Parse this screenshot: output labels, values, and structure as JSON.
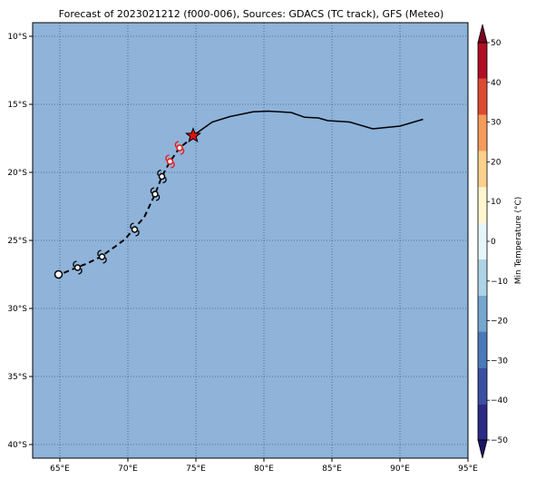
{
  "title": "Forecast of 2023021212 (f000-006), Sources: GDACS (TC track), GFS (Meteo)",
  "map": {
    "lon_range": [
      63,
      95
    ],
    "lat_range": [
      -41,
      -9
    ],
    "ocean_color": "#8fb3d9",
    "grid": "on",
    "lon_ticks": [
      {
        "value": 65,
        "label": "65°E"
      },
      {
        "value": 70,
        "label": "70°E"
      },
      {
        "value": 75,
        "label": "75°E"
      },
      {
        "value": 80,
        "label": "80°E"
      },
      {
        "value": 85,
        "label": "85°E"
      },
      {
        "value": 90,
        "label": "90°E"
      },
      {
        "value": 95,
        "label": "95°E"
      }
    ],
    "lat_ticks": [
      {
        "value": -10,
        "label": "10°S"
      },
      {
        "value": -15,
        "label": "15°S"
      },
      {
        "value": -20,
        "label": "20°S"
      },
      {
        "value": -25,
        "label": "25°S"
      },
      {
        "value": -30,
        "label": "30°S"
      },
      {
        "value": -35,
        "label": "35°S"
      },
      {
        "value": -40,
        "label": "40°S"
      }
    ]
  },
  "chart_data": {
    "type": "map",
    "past_track": [
      [
        91.7,
        -16.1
      ],
      [
        90.0,
        -16.6
      ],
      [
        88.0,
        -16.8
      ],
      [
        86.3,
        -16.3
      ],
      [
        84.7,
        -16.2
      ],
      [
        84.0,
        -16.0
      ],
      [
        83.0,
        -15.95
      ],
      [
        82.0,
        -15.6
      ],
      [
        80.3,
        -15.5
      ],
      [
        79.2,
        -15.55
      ],
      [
        77.5,
        -15.9
      ],
      [
        76.2,
        -16.3
      ],
      [
        75.5,
        -16.8
      ],
      [
        74.8,
        -17.3
      ]
    ],
    "forecast_track": [
      [
        74.8,
        -17.3
      ],
      [
        74.3,
        -17.8
      ],
      [
        73.8,
        -18.2
      ],
      [
        73.1,
        -19.2
      ],
      [
        72.5,
        -20.3
      ],
      [
        72.0,
        -21.6
      ],
      [
        71.2,
        -23.3
      ],
      [
        70.4,
        -24.2
      ],
      [
        69.8,
        -24.9
      ],
      [
        69.0,
        -25.5
      ],
      [
        68.0,
        -26.2
      ],
      [
        67.0,
        -26.7
      ],
      [
        66.2,
        -27.0
      ],
      [
        65.5,
        -27.3
      ],
      [
        65.0,
        -27.5
      ]
    ],
    "current_position": {
      "lon": 74.8,
      "lat": -17.3,
      "marker": "star"
    },
    "forecast_positions": [
      {
        "lon": 73.8,
        "lat": -18.2,
        "color": "#ee1111"
      },
      {
        "lon": 73.1,
        "lat": -19.2,
        "color": "#ee1111"
      },
      {
        "lon": 72.5,
        "lat": -20.3,
        "color": "#000000"
      },
      {
        "lon": 72.0,
        "lat": -21.6,
        "color": "#000000"
      },
      {
        "lon": 70.5,
        "lat": -24.2,
        "color": "#000000"
      },
      {
        "lon": 68.1,
        "lat": -26.2,
        "color": "#000000"
      },
      {
        "lon": 66.3,
        "lat": -27.0,
        "color": "#000000"
      },
      {
        "lon": 64.9,
        "lat": -27.5,
        "color": "#000000",
        "marker": "circle"
      }
    ]
  },
  "colorbar": {
    "label": "Min Temperature (°C)",
    "range": [
      -50,
      50
    ],
    "ticks": [
      {
        "value": 50,
        "label": "50"
      },
      {
        "value": 40,
        "label": "40"
      },
      {
        "value": 30,
        "label": "30"
      },
      {
        "value": 20,
        "label": "20"
      },
      {
        "value": 10,
        "label": "10"
      },
      {
        "value": 0,
        "label": "0"
      },
      {
        "value": -10,
        "label": "−10"
      },
      {
        "value": -20,
        "label": "−20"
      },
      {
        "value": -30,
        "label": "−30"
      },
      {
        "value": -40,
        "label": "−40"
      },
      {
        "value": -50,
        "label": "−50"
      }
    ],
    "colors": [
      "#2c2a85",
      "#3b4fa4",
      "#4a7ab8",
      "#75a7cf",
      "#acd4e6",
      "#e6f5fa",
      "#fff6cf",
      "#fdd08e",
      "#f59b5c",
      "#dc4a32",
      "#b10f26"
    ],
    "extend_low_color": "#1a1662",
    "extend_high_color": "#7a0520"
  }
}
